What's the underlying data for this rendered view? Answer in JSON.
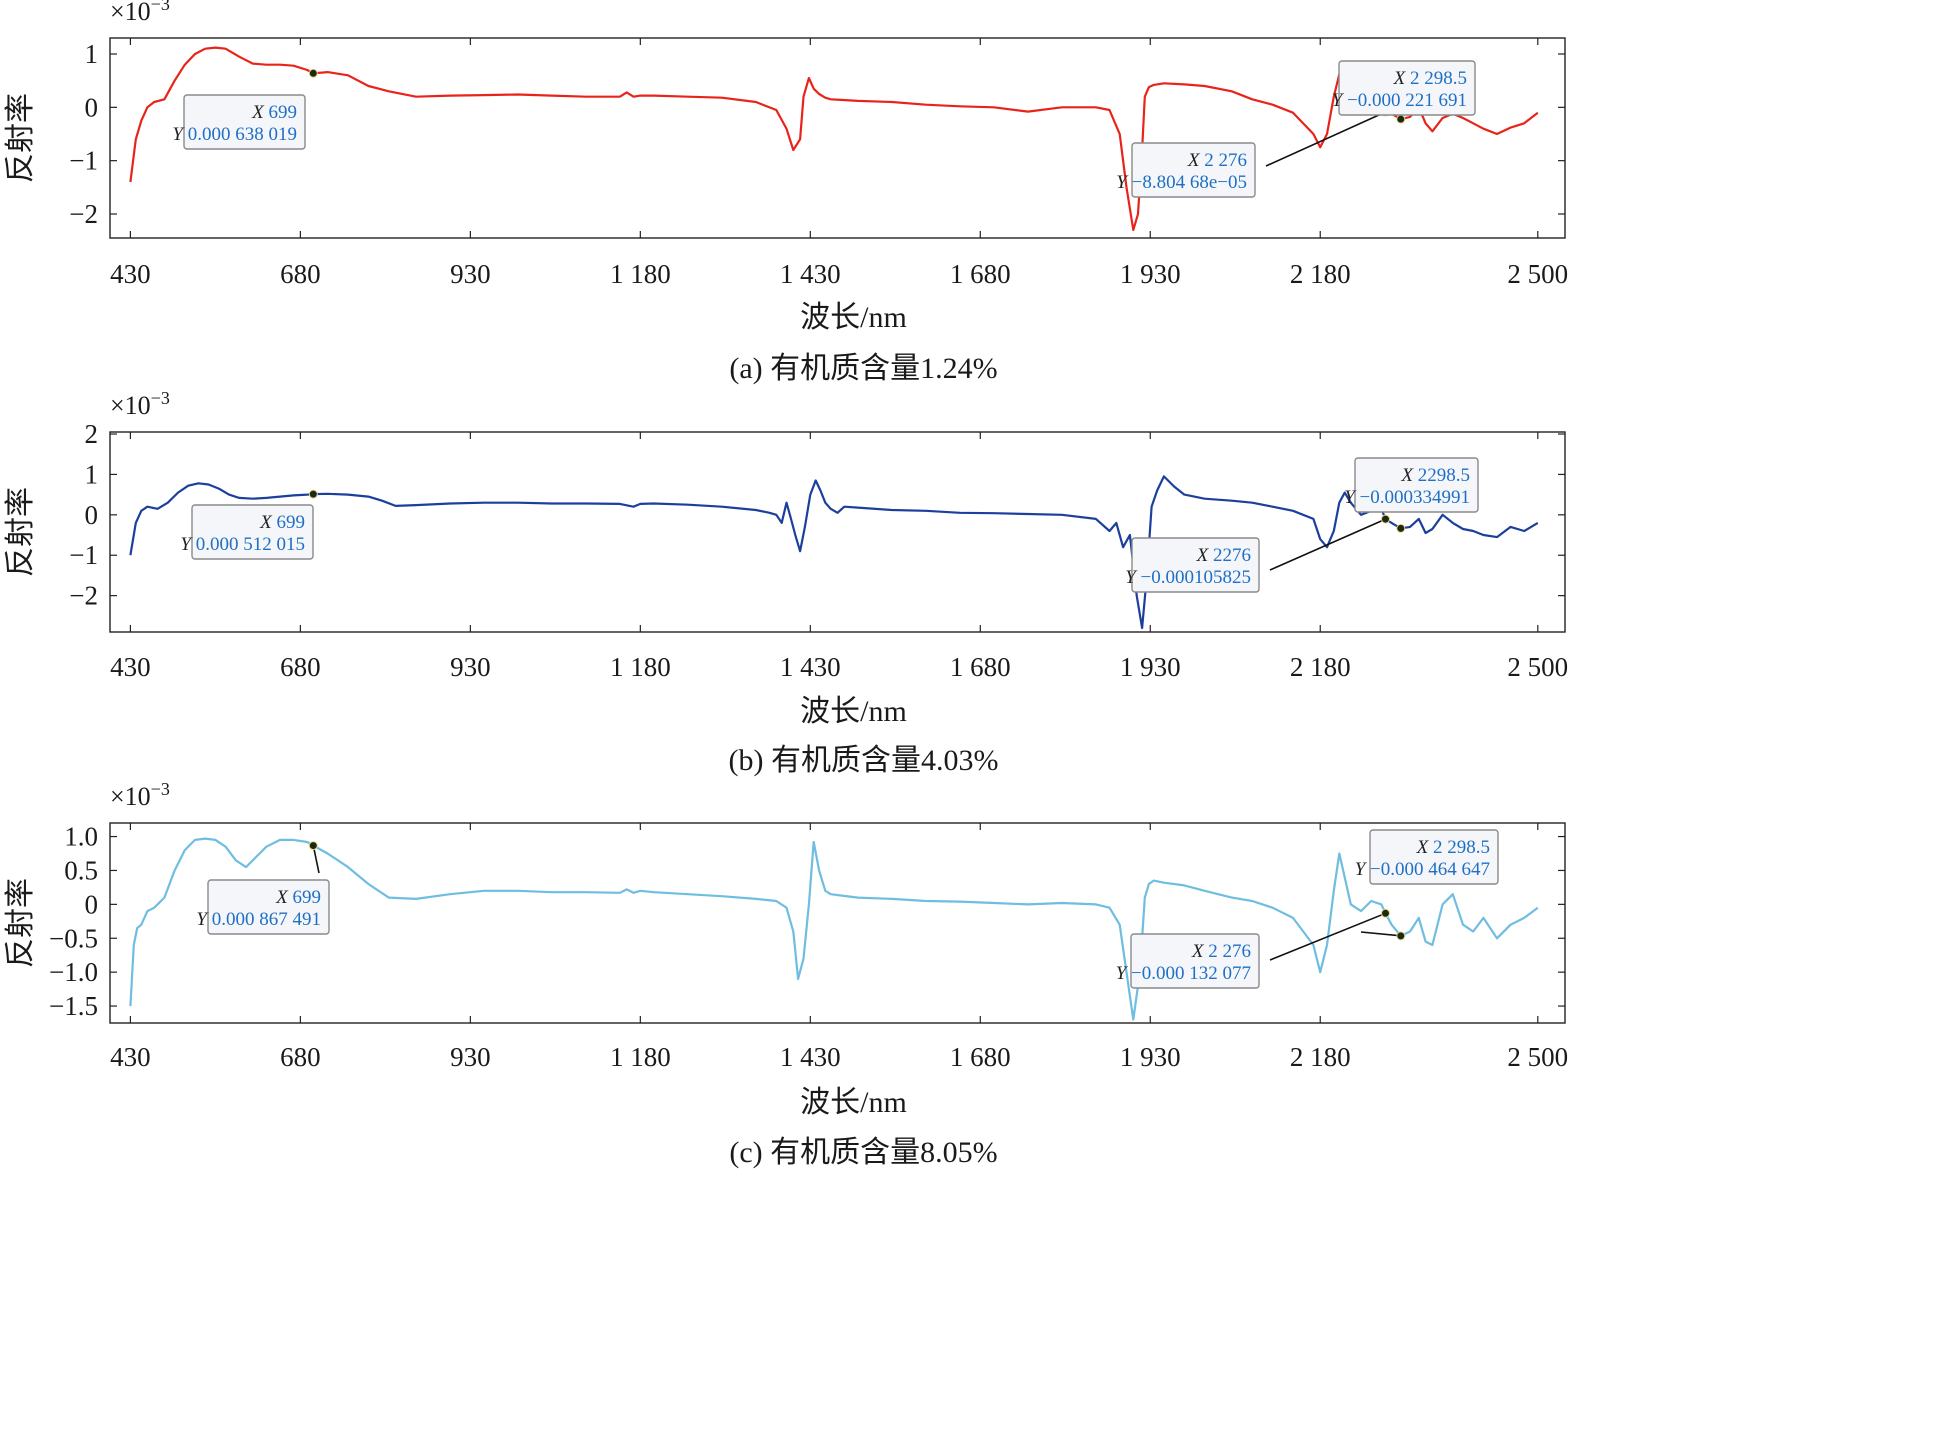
{
  "chart_data": [
    {
      "type": "line",
      "panel": "a",
      "caption": "(a) 有机质含量1.24%",
      "xlabel": "波长/nm",
      "ylabel": "反射率",
      "y_scale_label": "×10",
      "y_scale_exp": "−3",
      "color": "#e8241a",
      "xlim": [
        400,
        2540
      ],
      "ylim": [
        -2.45,
        1.3
      ],
      "x_ticks": [
        430,
        680,
        930,
        1180,
        1430,
        1680,
        1930,
        2180,
        2500
      ],
      "x_tick_labels": [
        "430",
        "680",
        "930",
        "1 180",
        "1 430",
        "1 680",
        "1 930",
        "2 180",
        "2 500"
      ],
      "y_ticks": [
        1,
        0,
        -1,
        -2
      ],
      "y_tick_labels": [
        "1",
        "0",
        "−1",
        "−2"
      ],
      "series": [
        {
          "name": "有机质含量1.24%",
          "x": [
            430,
            438,
            446,
            455,
            465,
            480,
            495,
            510,
            525,
            540,
            555,
            570,
            590,
            610,
            630,
            650,
            670,
            690,
            699,
            720,
            750,
            780,
            810,
            850,
            900,
            950,
            1000,
            1050,
            1100,
            1150,
            1160,
            1170,
            1180,
            1200,
            1250,
            1300,
            1350,
            1380,
            1395,
            1405,
            1415,
            1420,
            1428,
            1435,
            1443,
            1452,
            1460,
            1475,
            1500,
            1550,
            1600,
            1650,
            1700,
            1750,
            1800,
            1850,
            1870,
            1885,
            1895,
            1905,
            1912,
            1918,
            1922,
            1928,
            1935,
            1950,
            1980,
            2010,
            2050,
            2080,
            2110,
            2140,
            2170,
            2180,
            2190,
            2200,
            2208,
            2216,
            2225,
            2240,
            2255,
            2270,
            2276,
            2285,
            2298.5,
            2312,
            2325,
            2335,
            2345,
            2360,
            2375,
            2390,
            2405,
            2420,
            2440,
            2460,
            2480,
            2500
          ],
          "y": [
            -1.4,
            -0.6,
            -0.25,
            0,
            0.1,
            0.15,
            0.5,
            0.8,
            1.0,
            1.1,
            1.12,
            1.1,
            0.95,
            0.82,
            0.8,
            0.8,
            0.78,
            0.7,
            0.638,
            0.66,
            0.6,
            0.4,
            0.3,
            0.2,
            0.22,
            0.23,
            0.24,
            0.22,
            0.2,
            0.2,
            0.28,
            0.2,
            0.22,
            0.22,
            0.2,
            0.18,
            0.1,
            -0.05,
            -0.4,
            -0.8,
            -0.6,
            0.2,
            0.55,
            0.35,
            0.25,
            0.18,
            0.15,
            0.14,
            0.12,
            0.1,
            0.05,
            0.02,
            0.0,
            -0.08,
            0.0,
            0.0,
            -0.05,
            -0.5,
            -1.5,
            -2.3,
            -2.0,
            -0.8,
            0.2,
            0.38,
            0.42,
            0.45,
            0.43,
            0.4,
            0.3,
            0.15,
            0.05,
            -0.1,
            -0.5,
            -0.75,
            -0.5,
            0.2,
            0.62,
            0.3,
            0.0,
            0.1,
            0.15,
            0.12,
            -0.088,
            -0.12,
            -0.222,
            -0.18,
            0.0,
            -0.3,
            -0.45,
            -0.2,
            -0.12,
            -0.2,
            -0.3,
            -0.4,
            -0.5,
            -0.38,
            -0.3,
            -0.1
          ]
        }
      ],
      "markers": [
        {
          "x": 699,
          "y": 0.638
        },
        {
          "x": 2276,
          "y": -0.088
        },
        {
          "x": 2298.5,
          "y": -0.222
        }
      ],
      "datatips": [
        {
          "x_key": "X",
          "x_val": "699",
          "y_key": "Y",
          "y_val": "0.000 638 019"
        },
        {
          "x_key": "X",
          "x_val": "2 276",
          "y_key": "Y",
          "y_val": "−8.804 68e−05"
        },
        {
          "x_key": "X",
          "x_val": "2 298.5",
          "y_key": "Y",
          "y_val": "−0.000 221 691"
        }
      ]
    },
    {
      "type": "line",
      "panel": "b",
      "caption": "(b) 有机质含量4.03%",
      "xlabel": "波长/nm",
      "ylabel": "反射率",
      "y_scale_label": "×10",
      "y_scale_exp": "−3",
      "color": "#1c3f9e",
      "xlim": [
        400,
        2540
      ],
      "ylim": [
        -2.9,
        2.05
      ],
      "x_ticks": [
        430,
        680,
        930,
        1180,
        1430,
        1680,
        1930,
        2180,
        2500
      ],
      "x_tick_labels": [
        "430",
        "680",
        "930",
        "1 180",
        "1 430",
        "1 680",
        "1 930",
        "2 180",
        "2 500"
      ],
      "y_ticks": [
        2,
        1,
        0,
        -1,
        -2
      ],
      "y_tick_labels": [
        "2",
        "1",
        "0",
        "−1",
        "−2"
      ],
      "series": [
        {
          "name": "有机质含量4.03%",
          "x": [
            430,
            438,
            446,
            455,
            470,
            485,
            500,
            515,
            530,
            545,
            560,
            575,
            590,
            610,
            630,
            650,
            670,
            690,
            699,
            720,
            750,
            780,
            800,
            820,
            850,
            900,
            950,
            1000,
            1050,
            1100,
            1150,
            1170,
            1180,
            1200,
            1250,
            1300,
            1350,
            1370,
            1380,
            1388,
            1395,
            1400,
            1408,
            1415,
            1422,
            1430,
            1438,
            1445,
            1452,
            1460,
            1470,
            1480,
            1500,
            1550,
            1600,
            1650,
            1700,
            1750,
            1800,
            1850,
            1870,
            1880,
            1890,
            1900,
            1910,
            1918,
            1925,
            1932,
            1940,
            1950,
            1965,
            1980,
            2010,
            2050,
            2080,
            2110,
            2140,
            2170,
            2180,
            2190,
            2200,
            2208,
            2216,
            2225,
            2240,
            2255,
            2270,
            2276,
            2285,
            2298.5,
            2312,
            2325,
            2335,
            2345,
            2360,
            2375,
            2390,
            2405,
            2420,
            2440,
            2460,
            2480,
            2500
          ],
          "y": [
            -1.0,
            -0.2,
            0.1,
            0.2,
            0.15,
            0.3,
            0.55,
            0.72,
            0.78,
            0.75,
            0.65,
            0.5,
            0.42,
            0.4,
            0.42,
            0.45,
            0.48,
            0.5,
            0.512,
            0.52,
            0.5,
            0.45,
            0.35,
            0.22,
            0.24,
            0.28,
            0.3,
            0.3,
            0.28,
            0.28,
            0.27,
            0.2,
            0.27,
            0.28,
            0.25,
            0.2,
            0.12,
            0.05,
            0.0,
            -0.2,
            0.3,
            0.0,
            -0.5,
            -0.9,
            -0.3,
            0.5,
            0.85,
            0.6,
            0.3,
            0.15,
            0.05,
            0.2,
            0.18,
            0.12,
            0.1,
            0.05,
            0.04,
            0.02,
            0.0,
            -0.1,
            -0.4,
            -0.2,
            -0.8,
            -0.5,
            -2.0,
            -2.8,
            -1.5,
            0.2,
            0.6,
            0.95,
            0.7,
            0.5,
            0.4,
            0.35,
            0.3,
            0.2,
            0.1,
            -0.1,
            -0.6,
            -0.8,
            -0.4,
            0.3,
            0.55,
            0.3,
            0.0,
            0.1,
            0.15,
            -0.106,
            -0.2,
            -0.335,
            -0.3,
            -0.1,
            -0.45,
            -0.35,
            0.0,
            -0.2,
            -0.35,
            -0.4,
            -0.5,
            -0.55,
            -0.3,
            -0.4,
            -0.2
          ]
        }
      ],
      "markers": [
        {
          "x": 699,
          "y": 0.512
        },
        {
          "x": 2276,
          "y": -0.106
        },
        {
          "x": 2298.5,
          "y": -0.335
        }
      ],
      "datatips": [
        {
          "x_key": "X",
          "x_val": "699",
          "y_key": "Y",
          "y_val": "0.000 512 015"
        },
        {
          "x_key": "X",
          "x_val": "2276",
          "y_key": "Y",
          "y_val": "−0.000105825"
        },
        {
          "x_key": "X",
          "x_val": "2298.5",
          "y_key": "Y",
          "y_val": "−0.000334991"
        }
      ]
    },
    {
      "type": "line",
      "panel": "c",
      "caption": "(c) 有机质含量8.05%",
      "xlabel": "波长/nm",
      "ylabel": "反射率",
      "y_scale_label": "×10",
      "y_scale_exp": "−3",
      "color": "#6fbde0",
      "xlim": [
        400,
        2540
      ],
      "ylim": [
        -1.75,
        1.2
      ],
      "x_ticks": [
        430,
        680,
        930,
        1180,
        1430,
        1680,
        1930,
        2180,
        2500
      ],
      "x_tick_labels": [
        "430",
        "680",
        "930",
        "1 180",
        "1 430",
        "1 680",
        "1 930",
        "2 180",
        "2 500"
      ],
      "y_ticks": [
        1.0,
        0.5,
        0,
        -0.5,
        -1.0,
        -1.5
      ],
      "y_tick_labels": [
        "1.0",
        "0.5",
        "0",
        "−0.5",
        "−1.0",
        "−1.5"
      ],
      "series": [
        {
          "name": "有机质含量8.05%",
          "x": [
            430,
            435,
            440,
            446,
            455,
            465,
            480,
            495,
            510,
            525,
            540,
            555,
            570,
            585,
            600,
            615,
            630,
            650,
            670,
            690,
            699,
            720,
            750,
            780,
            810,
            850,
            900,
            950,
            1000,
            1050,
            1100,
            1150,
            1160,
            1170,
            1180,
            1200,
            1250,
            1300,
            1350,
            1380,
            1395,
            1405,
            1412,
            1420,
            1428,
            1435,
            1443,
            1452,
            1460,
            1475,
            1500,
            1550,
            1600,
            1650,
            1700,
            1750,
            1800,
            1850,
            1870,
            1885,
            1895,
            1905,
            1912,
            1918,
            1922,
            1928,
            1935,
            1950,
            1980,
            2010,
            2050,
            2080,
            2110,
            2140,
            2170,
            2180,
            2190,
            2200,
            2208,
            2216,
            2225,
            2240,
            2255,
            2270,
            2276,
            2285,
            2298.5,
            2312,
            2325,
            2335,
            2345,
            2360,
            2375,
            2390,
            2405,
            2420,
            2440,
            2460,
            2480,
            2500
          ],
          "y": [
            -1.5,
            -0.6,
            -0.35,
            -0.3,
            -0.1,
            -0.05,
            0.1,
            0.5,
            0.8,
            0.95,
            0.97,
            0.95,
            0.85,
            0.65,
            0.55,
            0.7,
            0.85,
            0.95,
            0.95,
            0.92,
            0.867,
            0.75,
            0.55,
            0.3,
            0.1,
            0.08,
            0.15,
            0.2,
            0.2,
            0.18,
            0.18,
            0.17,
            0.22,
            0.17,
            0.2,
            0.18,
            0.15,
            0.12,
            0.08,
            0.05,
            -0.05,
            -0.4,
            -1.1,
            -0.8,
            0.0,
            0.92,
            0.5,
            0.2,
            0.15,
            0.13,
            0.1,
            0.08,
            0.05,
            0.04,
            0.02,
            0.0,
            0.02,
            0.0,
            -0.05,
            -0.3,
            -1.0,
            -1.7,
            -1.2,
            -0.5,
            0.1,
            0.3,
            0.35,
            0.32,
            0.28,
            0.2,
            0.1,
            0.05,
            -0.05,
            -0.2,
            -0.6,
            -1.0,
            -0.6,
            0.2,
            0.75,
            0.4,
            0.0,
            -0.1,
            0.05,
            0.0,
            -0.132,
            -0.3,
            -0.465,
            -0.4,
            -0.2,
            -0.55,
            -0.6,
            0.0,
            0.15,
            -0.3,
            -0.4,
            -0.2,
            -0.5,
            -0.3,
            -0.2,
            -0.05
          ]
        }
      ],
      "markers": [
        {
          "x": 699,
          "y": 0.867
        },
        {
          "x": 2276,
          "y": -0.132
        },
        {
          "x": 2298.5,
          "y": -0.465
        }
      ],
      "datatips": [
        {
          "x_key": "X",
          "x_val": "699",
          "y_key": "Y",
          "y_val": "0.000 867 491"
        },
        {
          "x_key": "X",
          "x_val": "2 276",
          "y_key": "Y",
          "y_val": "−0.000 132 077"
        },
        {
          "x_key": "X",
          "x_val": "2 298.5",
          "y_key": "Y",
          "y_val": "−0.000 464 647"
        }
      ]
    }
  ]
}
